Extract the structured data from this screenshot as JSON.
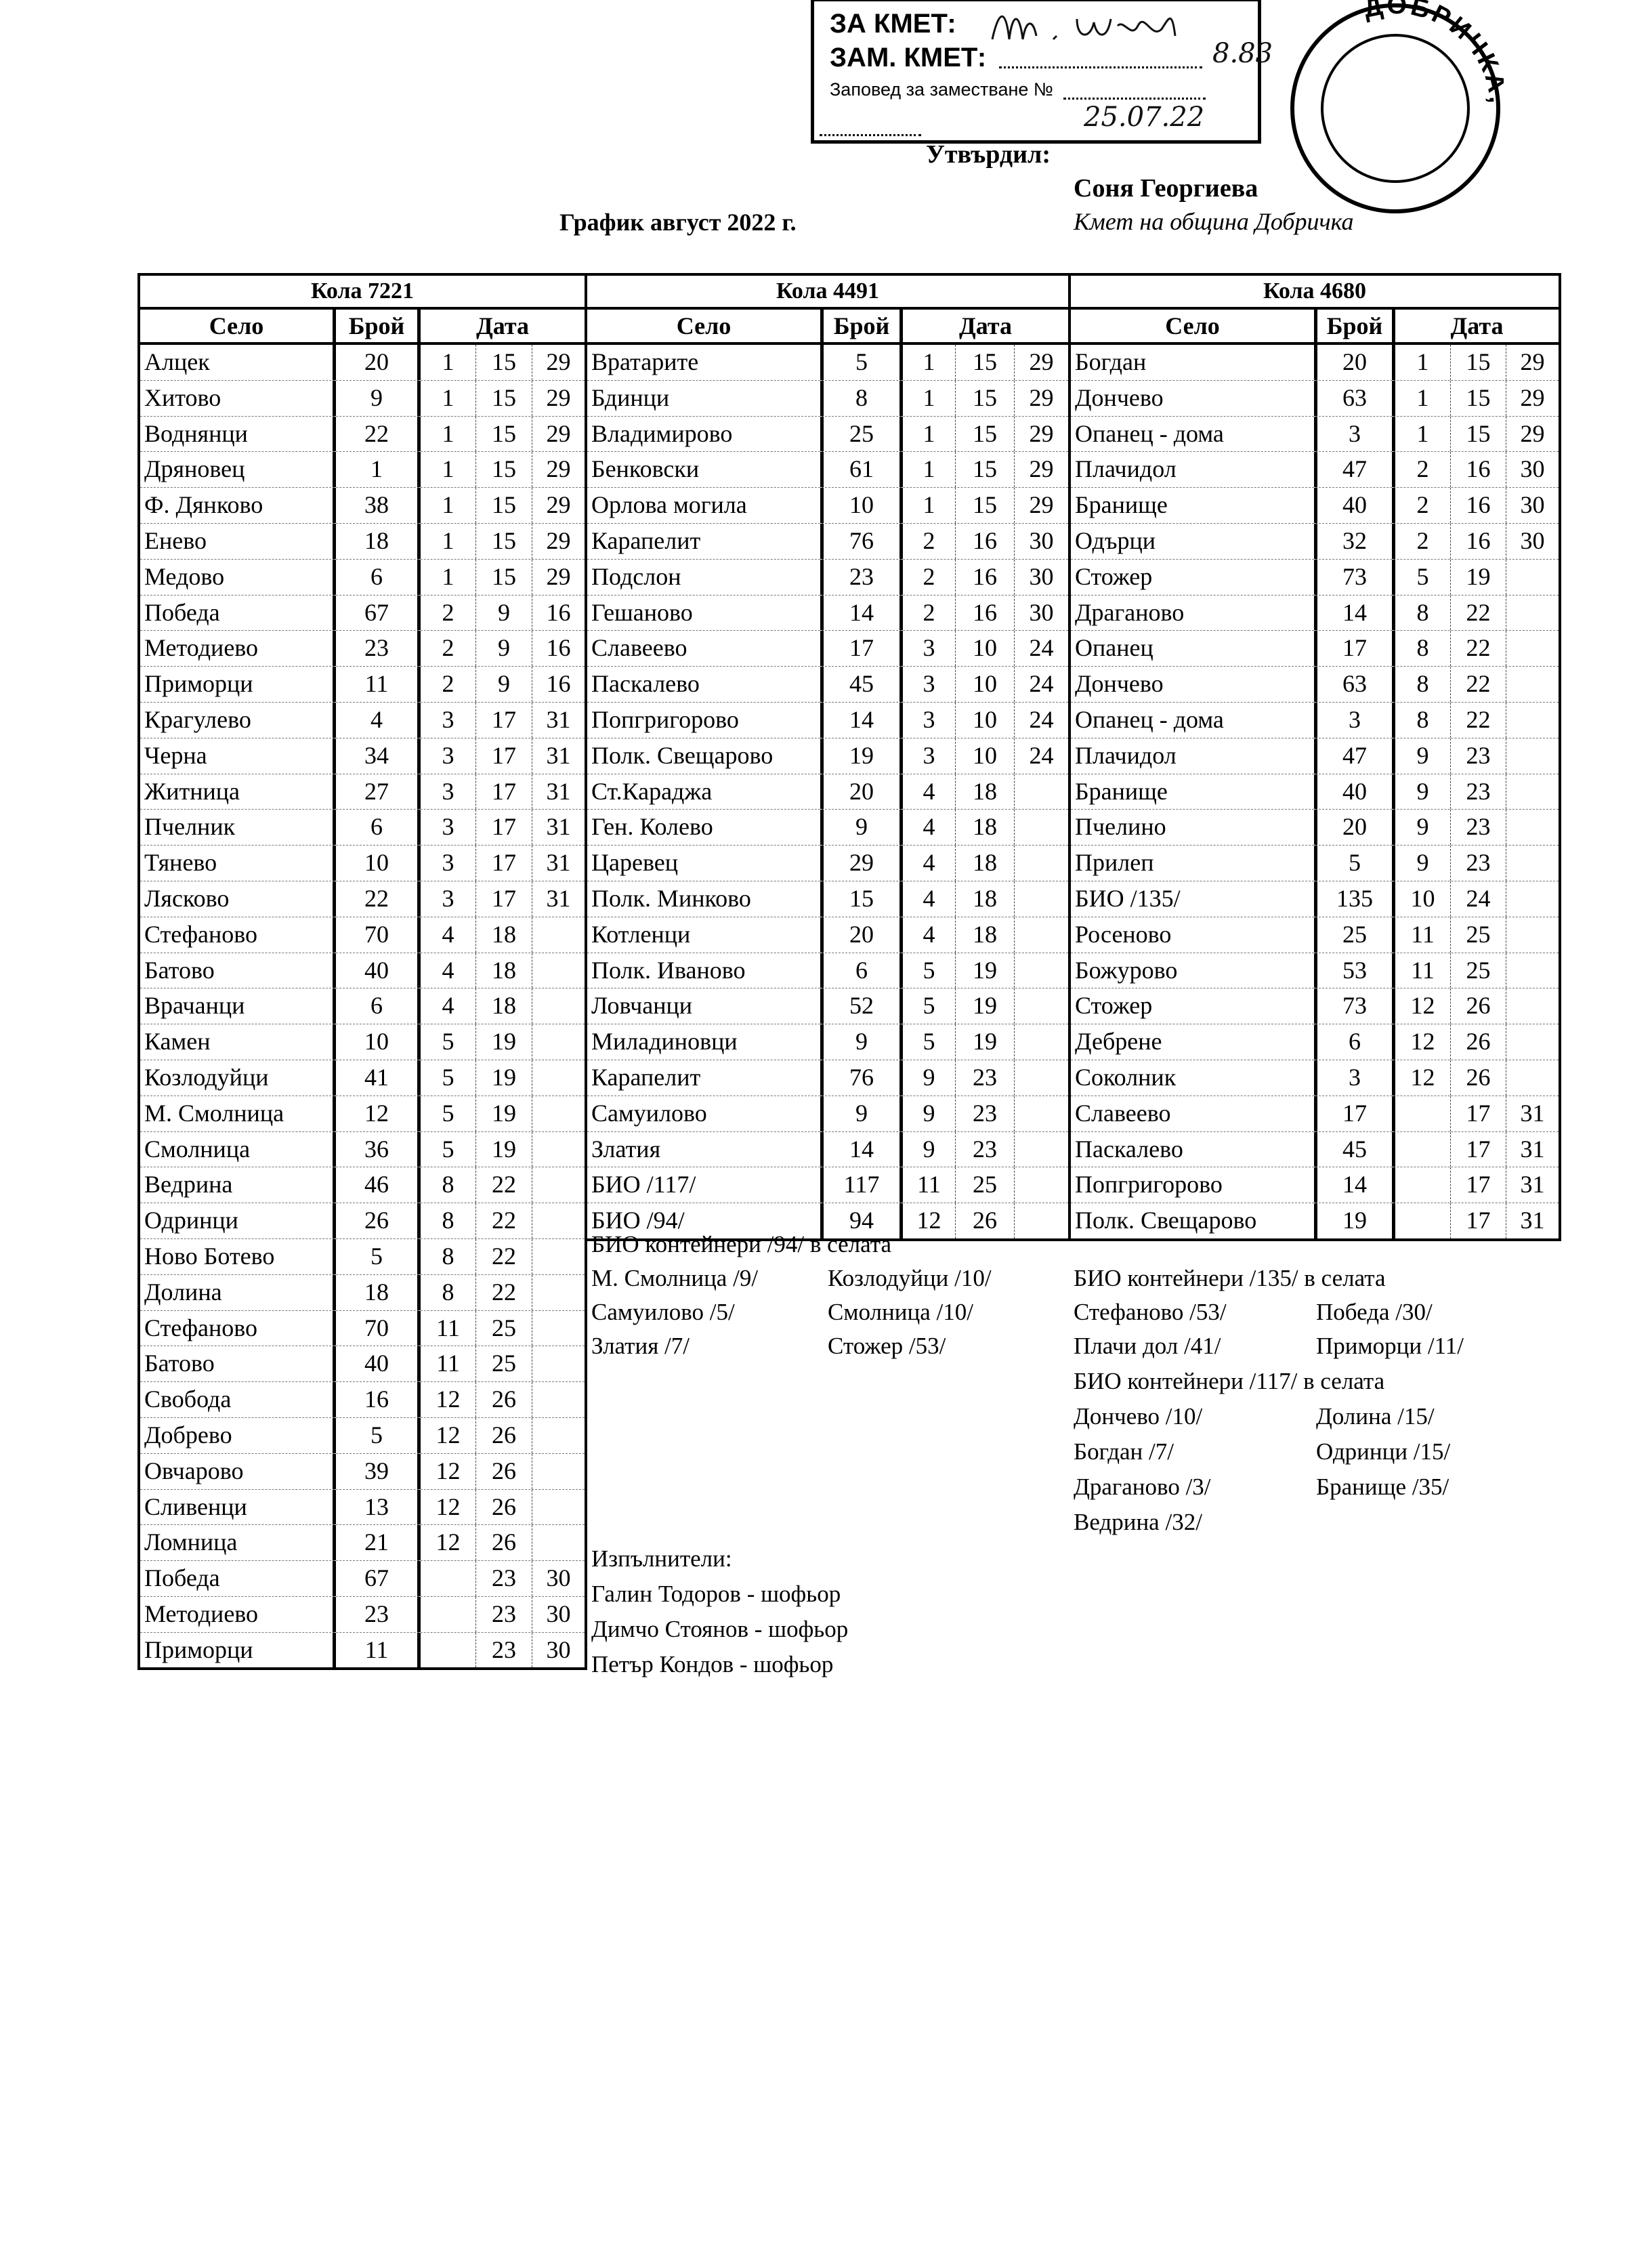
{
  "approval": {
    "for_mayor": "ЗА КМЕТ:",
    "deputy_mayor": "ЗАМ. КМЕТ:",
    "order_label": "Заповед за заместване №",
    "order_number_handwritten": "8.83",
    "order_date_handwritten": "25.07.22",
    "approved_label": "Утвърдил:",
    "approver_name": "Соня Георгиева",
    "approver_title": "Кмет на община Добричка",
    "stamp_text": "ДОБРИЧКА, гр."
  },
  "title": "График август 2022 г.",
  "columns": {
    "village": "Село",
    "count": "Брой",
    "date": "Дата"
  },
  "tables": [
    {
      "car": "Кола 7221",
      "rows": [
        [
          "Алцек",
          "20",
          "1",
          "15",
          "29"
        ],
        [
          "Хитово",
          "9",
          "1",
          "15",
          "29"
        ],
        [
          "Воднянци",
          "22",
          "1",
          "15",
          "29"
        ],
        [
          "Дряновец",
          "1",
          "1",
          "15",
          "29"
        ],
        [
          "Ф. Дянково",
          "38",
          "1",
          "15",
          "29"
        ],
        [
          "Енево",
          "18",
          "1",
          "15",
          "29"
        ],
        [
          "Медово",
          "6",
          "1",
          "15",
          "29"
        ],
        [
          "Победа",
          "67",
          "2",
          "9",
          "16"
        ],
        [
          "Методиево",
          "23",
          "2",
          "9",
          "16"
        ],
        [
          "Приморци",
          "11",
          "2",
          "9",
          "16"
        ],
        [
          "Крагулево",
          "4",
          "3",
          "17",
          "31"
        ],
        [
          "Черна",
          "34",
          "3",
          "17",
          "31"
        ],
        [
          "Житница",
          "27",
          "3",
          "17",
          "31"
        ],
        [
          "Пчелник",
          "6",
          "3",
          "17",
          "31"
        ],
        [
          "Тянево",
          "10",
          "3",
          "17",
          "31"
        ],
        [
          "Лясково",
          "22",
          "3",
          "17",
          "31"
        ],
        [
          "Стефаново",
          "70",
          "4",
          "18",
          ""
        ],
        [
          "Батово",
          "40",
          "4",
          "18",
          ""
        ],
        [
          "Врачанци",
          "6",
          "4",
          "18",
          ""
        ],
        [
          "Камен",
          "10",
          "5",
          "19",
          ""
        ],
        [
          "Козлодуйци",
          "41",
          "5",
          "19",
          ""
        ],
        [
          "М. Смолница",
          "12",
          "5",
          "19",
          ""
        ],
        [
          "Смолница",
          "36",
          "5",
          "19",
          ""
        ],
        [
          "Ведрина",
          "46",
          "8",
          "22",
          ""
        ],
        [
          "Одринци",
          "26",
          "8",
          "22",
          ""
        ],
        [
          "Ново Ботево",
          "5",
          "8",
          "22",
          ""
        ],
        [
          "Долина",
          "18",
          "8",
          "22",
          ""
        ],
        [
          "Стефаново",
          "70",
          "11",
          "25",
          ""
        ],
        [
          "Батово",
          "40",
          "11",
          "25",
          ""
        ],
        [
          "Свобода",
          "16",
          "12",
          "26",
          ""
        ],
        [
          "Добрево",
          "5",
          "12",
          "26",
          ""
        ],
        [
          "Овчарово",
          "39",
          "12",
          "26",
          ""
        ],
        [
          "Сливенци",
          "13",
          "12",
          "26",
          ""
        ],
        [
          "Ломница",
          "21",
          "12",
          "26",
          ""
        ],
        [
          "Победа",
          "67",
          "",
          "23",
          "30"
        ],
        [
          "Методиево",
          "23",
          "",
          "23",
          "30"
        ],
        [
          "Приморци",
          "11",
          "",
          "23",
          "30"
        ]
      ]
    },
    {
      "car": "Кола 4491",
      "rows": [
        [
          "Вратарите",
          "5",
          "1",
          "15",
          "29"
        ],
        [
          "Бдинци",
          "8",
          "1",
          "15",
          "29"
        ],
        [
          "Владимирово",
          "25",
          "1",
          "15",
          "29"
        ],
        [
          "Бенковски",
          "61",
          "1",
          "15",
          "29"
        ],
        [
          "Орлова могила",
          "10",
          "1",
          "15",
          "29"
        ],
        [
          "Карапелит",
          "76",
          "2",
          "16",
          "30"
        ],
        [
          "Подслон",
          "23",
          "2",
          "16",
          "30"
        ],
        [
          "Гешаново",
          "14",
          "2",
          "16",
          "30"
        ],
        [
          "Славеево",
          "17",
          "3",
          "10",
          "24"
        ],
        [
          "Паскалево",
          "45",
          "3",
          "10",
          "24"
        ],
        [
          "Попгригорово",
          "14",
          "3",
          "10",
          "24"
        ],
        [
          "Полк. Свещарово",
          "19",
          "3",
          "10",
          "24"
        ],
        [
          "Ст.Караджа",
          "20",
          "4",
          "18",
          ""
        ],
        [
          "Ген. Колево",
          "9",
          "4",
          "18",
          ""
        ],
        [
          "Царевец",
          "29",
          "4",
          "18",
          ""
        ],
        [
          "Полк. Минково",
          "15",
          "4",
          "18",
          ""
        ],
        [
          "Котленци",
          "20",
          "4",
          "18",
          ""
        ],
        [
          "Полк. Иваново",
          "6",
          "5",
          "19",
          ""
        ],
        [
          "Ловчанци",
          "52",
          "5",
          "19",
          ""
        ],
        [
          "Миладиновци",
          "9",
          "5",
          "19",
          ""
        ],
        [
          "Карапелит",
          "76",
          "9",
          "23",
          ""
        ],
        [
          "Самуилово",
          "9",
          "9",
          "23",
          ""
        ],
        [
          "Златия",
          "14",
          "9",
          "23",
          ""
        ],
        [
          "БИО /117/",
          "117",
          "11",
          "25",
          ""
        ],
        [
          "БИО /94/",
          "94",
          "12",
          "26",
          ""
        ]
      ]
    },
    {
      "car": "Кола 4680",
      "rows": [
        [
          "Богдан",
          "20",
          "1",
          "15",
          "29"
        ],
        [
          "Дончево",
          "63",
          "1",
          "15",
          "29"
        ],
        [
          "Опанец - дома",
          "3",
          "1",
          "15",
          "29"
        ],
        [
          "Плачидол",
          "47",
          "2",
          "16",
          "30"
        ],
        [
          "Бранище",
          "40",
          "2",
          "16",
          "30"
        ],
        [
          "Одърци",
          "32",
          "2",
          "16",
          "30"
        ],
        [
          "Стожер",
          "73",
          "5",
          "19",
          ""
        ],
        [
          "Драганово",
          "14",
          "8",
          "22",
          ""
        ],
        [
          "Опанец",
          "17",
          "8",
          "22",
          ""
        ],
        [
          "Дончево",
          "63",
          "8",
          "22",
          ""
        ],
        [
          "Опанец - дома",
          "3",
          "8",
          "22",
          ""
        ],
        [
          "Плачидол",
          "47",
          "9",
          "23",
          ""
        ],
        [
          "Бранище",
          "40",
          "9",
          "23",
          ""
        ],
        [
          "Пчелино",
          "20",
          "9",
          "23",
          ""
        ],
        [
          "Прилеп",
          "5",
          "9",
          "23",
          ""
        ],
        [
          "БИО /135/",
          "135",
          "10",
          "24",
          ""
        ],
        [
          "Росеново",
          "25",
          "11",
          "25",
          ""
        ],
        [
          "Божурово",
          "53",
          "11",
          "25",
          ""
        ],
        [
          "Стожер",
          "73",
          "12",
          "26",
          ""
        ],
        [
          "Дебрене",
          "6",
          "12",
          "26",
          ""
        ],
        [
          "Соколник",
          "3",
          "12",
          "26",
          ""
        ],
        [
          "Славеево",
          "17",
          "",
          "17",
          "31"
        ],
        [
          "Паскалево",
          "45",
          "",
          "17",
          "31"
        ],
        [
          "Попгригорово",
          "14",
          "",
          "17",
          "31"
        ],
        [
          "Полк. Свещарово",
          "19",
          "",
          "17",
          "31"
        ]
      ]
    }
  ],
  "bio_notes_94": {
    "heading": "БИО контейнери /94/ в селата",
    "items": [
      "М. Смолница /9/",
      "Козлодуйци /10/",
      "Самуилово /5/",
      "Смолница /10/",
      "Златия /7/",
      "Стожер /53/"
    ]
  },
  "bio_notes_135": {
    "heading": "БИО контейнери /135/ в селата",
    "items": [
      "Стефаново /53/",
      "Победа /30/",
      "Плачи дол /41/",
      "Приморци /11/"
    ]
  },
  "bio_notes_117": {
    "heading": "БИО контейнери /117/ в селата",
    "items": [
      "Дончево /10/",
      "Долина /15/",
      "Богдан /7/",
      "Одринци /15/",
      "Драганово /3/",
      "Бранище /35/",
      "Ведрина /32/"
    ]
  },
  "executors": {
    "heading": "Изпълнители:",
    "items": [
      "Галин Тодоров - шофьор",
      "Димчо Стоянов - шофьор",
      "Петър Кондов - шофьор"
    ]
  }
}
